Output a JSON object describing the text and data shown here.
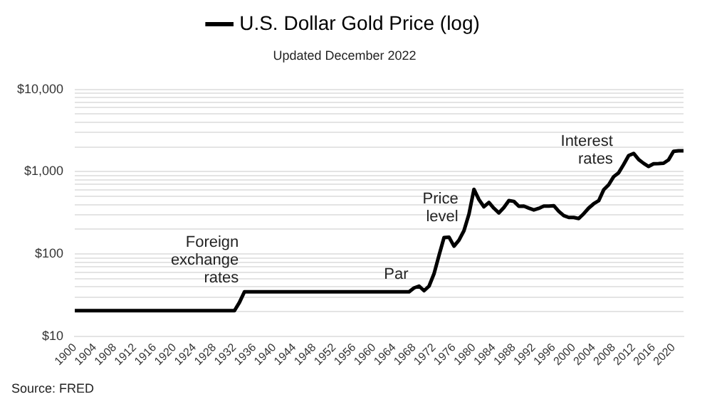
{
  "chart_data": {
    "type": "line",
    "subtitle": "Updated December 2022",
    "x": [
      1900,
      1901,
      1902,
      1903,
      1904,
      1905,
      1906,
      1907,
      1908,
      1909,
      1910,
      1911,
      1912,
      1913,
      1914,
      1915,
      1916,
      1917,
      1918,
      1919,
      1920,
      1921,
      1922,
      1923,
      1924,
      1925,
      1926,
      1927,
      1928,
      1929,
      1930,
      1931,
      1932,
      1933,
      1934,
      1935,
      1936,
      1937,
      1938,
      1939,
      1940,
      1941,
      1942,
      1943,
      1944,
      1945,
      1946,
      1947,
      1948,
      1949,
      1950,
      1951,
      1952,
      1953,
      1954,
      1955,
      1956,
      1957,
      1958,
      1959,
      1960,
      1961,
      1962,
      1963,
      1964,
      1965,
      1966,
      1967,
      1968,
      1969,
      1970,
      1971,
      1972,
      1973,
      1974,
      1975,
      1976,
      1977,
      1978,
      1979,
      1980,
      1981,
      1982,
      1983,
      1984,
      1985,
      1986,
      1987,
      1988,
      1989,
      1990,
      1991,
      1992,
      1993,
      1994,
      1995,
      1996,
      1997,
      1998,
      1999,
      2000,
      2001,
      2002,
      2003,
      2004,
      2005,
      2006,
      2007,
      2008,
      2009,
      2010,
      2011,
      2012,
      2013,
      2014,
      2015,
      2016,
      2017,
      2018,
      2019,
      2020,
      2021,
      2022
    ],
    "series": [
      {
        "name": "U.S. Dollar Gold Price (log)",
        "color": "#000000",
        "values": [
          20.67,
          20.67,
          20.67,
          20.67,
          20.67,
          20.67,
          20.67,
          20.67,
          20.67,
          20.67,
          20.67,
          20.67,
          20.67,
          20.67,
          20.67,
          20.67,
          20.67,
          20.67,
          20.67,
          20.67,
          20.67,
          20.67,
          20.67,
          20.67,
          20.67,
          20.67,
          20.67,
          20.67,
          20.67,
          20.67,
          20.67,
          20.67,
          20.67,
          26,
          35,
          35,
          35,
          35,
          35,
          35,
          35,
          35,
          35,
          35,
          35,
          35,
          35,
          35,
          35,
          35,
          35,
          35,
          35,
          35,
          35,
          35,
          35,
          35,
          35,
          35,
          35,
          35,
          35,
          35,
          35,
          35,
          35,
          35,
          39,
          41,
          36,
          41,
          58,
          97,
          159,
          161,
          125,
          148,
          193,
          307,
          612,
          460,
          376,
          424,
          361,
          317,
          368,
          447,
          437,
          381,
          383,
          362,
          344,
          360,
          384,
          384,
          388,
          331,
          294,
          279,
          279,
          271,
          310,
          363,
          409,
          445,
          604,
          696,
          872,
          972,
          1225,
          1572,
          1669,
          1411,
          1266,
          1160,
          1251,
          1257,
          1268,
          1393,
          1770,
          1799,
          1800
        ]
      }
    ],
    "xlim": [
      1900,
      2022
    ],
    "xticks": [
      1900,
      1904,
      1908,
      1912,
      1916,
      1920,
      1924,
      1928,
      1932,
      1936,
      1940,
      1944,
      1948,
      1952,
      1956,
      1960,
      1964,
      1968,
      1972,
      1976,
      1980,
      1984,
      1988,
      1992,
      1996,
      2000,
      2004,
      2008,
      2012,
      2016,
      2020
    ],
    "ylim": [
      10,
      10000
    ],
    "yticks": [
      {
        "value": 10,
        "label": "$10"
      },
      {
        "value": 20,
        "label": null
      },
      {
        "value": 30,
        "label": null
      },
      {
        "value": 40,
        "label": null
      },
      {
        "value": 50,
        "label": null
      },
      {
        "value": 60,
        "label": null
      },
      {
        "value": 70,
        "label": null
      },
      {
        "value": 80,
        "label": null
      },
      {
        "value": 90,
        "label": null
      },
      {
        "value": 100,
        "label": "$100"
      },
      {
        "value": 200,
        "label": null
      },
      {
        "value": 300,
        "label": null
      },
      {
        "value": 400,
        "label": null
      },
      {
        "value": 500,
        "label": null
      },
      {
        "value": 600,
        "label": null
      },
      {
        "value": 700,
        "label": null
      },
      {
        "value": 800,
        "label": null
      },
      {
        "value": 900,
        "label": null
      },
      {
        "value": 1000,
        "label": "$1,000"
      },
      {
        "value": 2000,
        "label": null
      },
      {
        "value": 3000,
        "label": null
      },
      {
        "value": 4000,
        "label": null
      },
      {
        "value": 5000,
        "label": null
      },
      {
        "value": 6000,
        "label": null
      },
      {
        "value": 7000,
        "label": null
      },
      {
        "value": 8000,
        "label": null
      },
      {
        "value": 9000,
        "label": null
      },
      {
        "value": 10000,
        "label": "$10,000"
      }
    ],
    "log": "y",
    "grid": "y",
    "legend": "top",
    "marker": "none",
    "line_style": "solid",
    "annotations": [
      {
        "text": "Foreign\nexchange\nrates",
        "x": 1934,
        "y": 35
      },
      {
        "text": "Par",
        "x": 1968,
        "y": 39
      },
      {
        "text": "Price\nlevel",
        "x": 1978,
        "y": 193
      },
      {
        "text": "Interest\nrates",
        "x": 2009,
        "y": 972
      },
      "Source: FRED"
    ]
  }
}
